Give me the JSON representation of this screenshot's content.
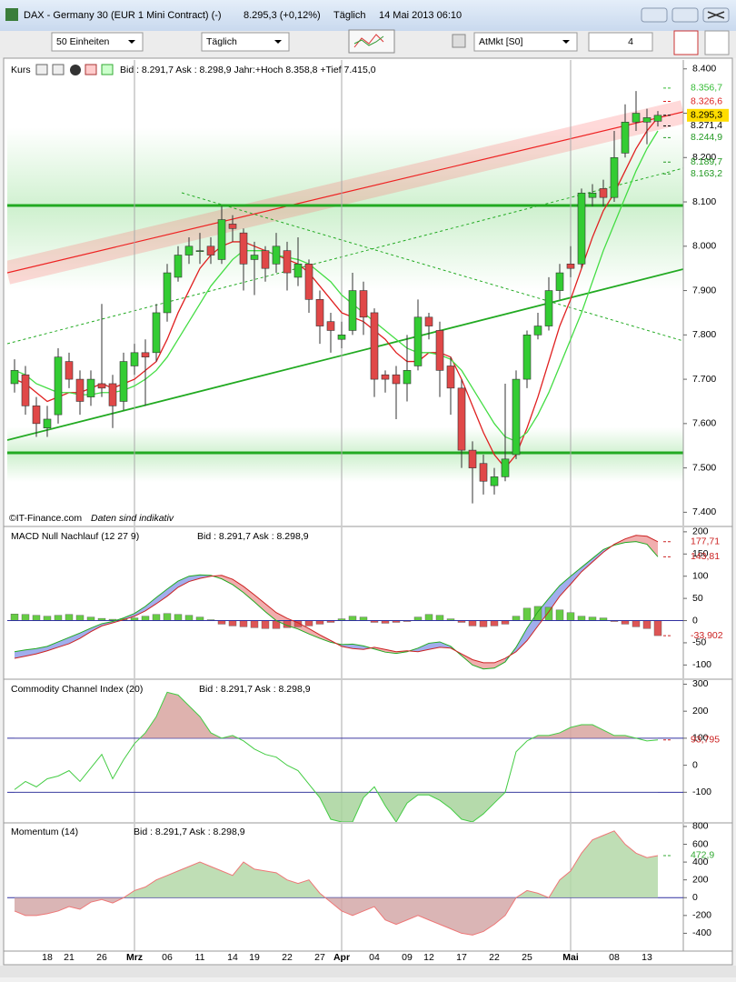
{
  "window": {
    "title": "DAX - Germany 30 (EUR 1 Mini Contract) (-)",
    "quote": "8.295,3 (+0,12%)",
    "period": "Täglich",
    "timestamp": "14 Mai 2013 06:10"
  },
  "toolbar": {
    "units": "50 Einheiten",
    "interval": "Täglich",
    "order": "AtMkt [S0]",
    "quantity": "4"
  },
  "chart_data": [
    {
      "type": "candlestick",
      "title": "Kurs",
      "quote": "Bid : 8.291,7  Ask : 8.298,9  Jahr:+Hoch 8.358,8 +Tief 7.415,0",
      "source": "©IT-Finance.com",
      "note": "Daten sind indikativ",
      "categories": [
        null,
        null,
        null,
        "18",
        null,
        "21",
        null,
        null,
        "26",
        null,
        null,
        "Mrz",
        null,
        null,
        "06",
        null,
        null,
        "11",
        null,
        null,
        "14",
        null,
        "19",
        null,
        null,
        "22",
        null,
        null,
        "27",
        null,
        "Apr",
        null,
        null,
        "04",
        null,
        null,
        "09",
        null,
        "12",
        null,
        null,
        "17",
        null,
        null,
        "22",
        null,
        null,
        "25",
        null,
        null,
        null,
        "Mai",
        null,
        null,
        null,
        "08",
        null,
        null,
        "13",
        null
      ],
      "open": [
        7690,
        7710,
        7640,
        7590,
        7620,
        7740,
        7700,
        7660,
        7690,
        7690,
        7650,
        7730,
        7760,
        7760,
        7850,
        7930,
        7980,
        7990,
        8000,
        7970,
        8050,
        8030,
        7970,
        7990,
        7960,
        7990,
        7930,
        7960,
        7880,
        7830,
        7790,
        7810,
        7900,
        7850,
        7710,
        7710,
        7690,
        7730,
        7840,
        7810,
        7730,
        7680,
        7540,
        7510,
        7460,
        7480,
        7530,
        7700,
        7800,
        7820,
        7900,
        7960,
        7960,
        8110,
        8130,
        8110,
        8210,
        8280,
        8280,
        8282
      ],
      "high": [
        7745,
        7730,
        7660,
        7640,
        7770,
        7760,
        7720,
        7720,
        7870,
        7710,
        7760,
        7780,
        7790,
        7870,
        7960,
        8000,
        8020,
        8030,
        8020,
        8090,
        8070,
        8040,
        8010,
        8000,
        8030,
        8010,
        8020,
        7970,
        7900,
        7850,
        7830,
        7940,
        7920,
        7860,
        7720,
        7730,
        7800,
        7880,
        7850,
        7830,
        7750,
        7700,
        7560,
        7530,
        7500,
        7690,
        7720,
        7810,
        7850,
        7930,
        7960,
        8000,
        8130,
        8140,
        8150,
        8260,
        8320,
        8350,
        8310,
        8305
      ],
      "low": [
        7670,
        7620,
        7570,
        7570,
        7600,
        7680,
        7620,
        7640,
        7660,
        7590,
        7630,
        7710,
        7640,
        7740,
        7830,
        7920,
        7960,
        7960,
        7960,
        7960,
        8010,
        7900,
        7890,
        7920,
        7940,
        7900,
        7910,
        7850,
        7780,
        7760,
        7770,
        7800,
        7800,
        7660,
        7670,
        7610,
        7650,
        7720,
        7790,
        7660,
        7620,
        7500,
        7420,
        7440,
        7440,
        7470,
        7520,
        7680,
        7790,
        7810,
        7880,
        7930,
        7950,
        8090,
        8090,
        8100,
        8200,
        8260,
        8230,
        8270
      ],
      "close": [
        7720,
        7640,
        7600,
        7610,
        7750,
        7700,
        7650,
        7700,
        7680,
        7640,
        7740,
        7760,
        7750,
        7850,
        7940,
        7980,
        8000,
        7990,
        7980,
        8060,
        8040,
        7960,
        7980,
        7950,
        8000,
        7940,
        7960,
        7880,
        7820,
        7810,
        7800,
        7900,
        7840,
        7700,
        7700,
        7690,
        7720,
        7840,
        7820,
        7720,
        7680,
        7540,
        7500,
        7470,
        7480,
        7520,
        7700,
        7800,
        7820,
        7900,
        7940,
        7950,
        8120,
        8120,
        8110,
        8200,
        8280,
        8300,
        8290,
        8295.3
      ],
      "up_color": "#33cc33",
      "down_color": "#e04848",
      "series": [
        {
          "name": null,
          "color": "#e02020",
          "values": [
            7700,
            7690,
            7670,
            7650,
            7660,
            7670,
            7670,
            7680,
            7690,
            7680,
            7690,
            7700,
            7720,
            7740,
            7790,
            7850,
            7900,
            7950,
            7980,
            8000,
            8010,
            8010,
            8000,
            7990,
            7980,
            7970,
            7960,
            7940,
            7910,
            7880,
            7850,
            7840,
            7830,
            7810,
            7790,
            7760,
            7740,
            7740,
            7760,
            7760,
            7750,
            7700,
            7640,
            7580,
            7530,
            7500,
            7530,
            7590,
            7660,
            7740,
            7820,
            7880,
            7950,
            8020,
            8080,
            8120,
            8170,
            8220,
            8260,
            8290
          ]
        },
        {
          "name": null,
          "color": "#44dd44",
          "values": [
            7720,
            7710,
            7690,
            7680,
            7670,
            7670,
            7665,
            7665,
            7670,
            7670,
            7675,
            7685,
            7700,
            7720,
            7750,
            7790,
            7830,
            7870,
            7910,
            7940,
            7970,
            7990,
            7990,
            7990,
            7980,
            7975,
            7970,
            7960,
            7940,
            7920,
            7890,
            7870,
            7850,
            7830,
            7810,
            7790,
            7770,
            7760,
            7760,
            7755,
            7745,
            7720,
            7680,
            7640,
            7600,
            7570,
            7560,
            7580,
            7620,
            7670,
            7730,
            7790,
            7850,
            7920,
            7990,
            8050,
            8110,
            8170,
            8220,
            8260
          ]
        }
      ],
      "ylim": [
        7370,
        8420
      ],
      "yticks": [
        {
          "value": 8400,
          "label": "8.400"
        },
        {
          "value": 8300,
          "label": "8.300"
        },
        {
          "value": 8200,
          "label": "8.200"
        },
        {
          "value": 8100,
          "label": "8.100"
        },
        {
          "value": 8000,
          "label": "8.000"
        },
        {
          "value": 7900,
          "label": "7.900"
        },
        {
          "value": 7800,
          "label": "7.800"
        },
        {
          "value": 7700,
          "label": "7.700"
        },
        {
          "value": 7600,
          "label": "7.600"
        },
        {
          "value": 7500,
          "label": "7.500"
        },
        {
          "value": 7400,
          "label": "7.400"
        }
      ],
      "markers": [
        {
          "value": 8356.7,
          "label": "8.356,7",
          "color": "#33bb33"
        },
        {
          "value": 8326.6,
          "label": "8.326,6",
          "color": "#dd2222"
        },
        {
          "value": 8295.3,
          "label": "8.295,3",
          "color": "#000000",
          "background": "#ffdd00"
        },
        {
          "value": 8271.4,
          "label": "8.271,4",
          "color": "#000000"
        },
        {
          "value": 8244.9,
          "label": "8.244,9",
          "color": "#229922"
        },
        {
          "value": 8189.7,
          "label": "8.189,7",
          "color": "#229922"
        },
        {
          "value": 8163.2,
          "label": "8.163,2",
          "color": "#229922"
        }
      ]
    },
    {
      "type": "macd",
      "title": "MACD Null Nachlauf (12 27 9)",
      "quote": "Bid : 8.291,7  Ask : 8.298,9",
      "values": [
        15,
        14,
        12,
        10,
        12,
        14,
        12,
        8,
        5,
        3,
        4,
        6,
        10,
        14,
        16,
        14,
        12,
        8,
        2,
        -8,
        -12,
        -14,
        -16,
        -18,
        -18,
        -16,
        -14,
        -12,
        -8,
        -4,
        4,
        10,
        8,
        -4,
        -6,
        -4,
        -2,
        8,
        14,
        12,
        4,
        -4,
        -12,
        -14,
        -12,
        -8,
        10,
        28,
        32,
        30,
        24,
        18,
        10,
        8,
        6,
        -2,
        -8,
        -14,
        -18,
        -33.902
      ],
      "up_color": "#66cc44",
      "down_color": "#dd5555",
      "series": [
        {
          "name": null,
          "color": "#22aa22",
          "values": [
            -70,
            -66,
            -63,
            -58,
            -48,
            -38,
            -28,
            -17,
            -7,
            -2,
            6,
            16,
            32,
            52,
            71,
            89,
            100,
            103,
            102,
            94,
            81,
            63,
            42,
            20,
            0,
            -11,
            -19,
            -30,
            -40,
            -49,
            -54,
            -53,
            -57,
            -64,
            -71,
            -74,
            -70,
            -62,
            -51,
            -48,
            -58,
            -79,
            -100,
            -109,
            -107,
            -93,
            -60,
            -17,
            20,
            50,
            79,
            100,
            120,
            140,
            160,
            170,
            176,
            178,
            172,
            143.81
          ]
        },
        {
          "name": null,
          "color": "#cc2222",
          "values": [
            -85,
            -80,
            -75,
            -68,
            -60,
            -52,
            -40,
            -25,
            -12,
            -5,
            2,
            10,
            22,
            38,
            55,
            75,
            88,
            95,
            100,
            102,
            93,
            77,
            58,
            38,
            18,
            5,
            -5,
            -18,
            -32,
            -45,
            -58,
            -63,
            -65,
            -60,
            -65,
            -70,
            -68,
            -70,
            -65,
            -60,
            -62,
            -75,
            -88,
            -95,
            -95,
            -85,
            -70,
            -45,
            -12,
            20,
            55,
            82,
            110,
            132,
            154,
            172,
            184,
            192,
            190,
            177.71
          ]
        }
      ],
      "fill_above": "#8a9ae8",
      "fill_below": "#ee9a9a",
      "ylim": [
        -130,
        210
      ],
      "yticks": [
        200,
        150,
        100,
        50,
        0,
        -50,
        -100
      ],
      "markers": [
        {
          "value": 177.71,
          "label": "177,71",
          "color": "#cc2222"
        },
        {
          "value": 143.81,
          "label": "143,81",
          "color": "#cc2222"
        },
        {
          "value": -33.902,
          "label": "-33,902",
          "color": "#cc2222"
        }
      ]
    },
    {
      "type": "line",
      "title": "Commodity Channel Index (20)",
      "quote": "Bid : 8.291,7  Ask : 8.298,9",
      "series": [
        {
          "name": null,
          "color": "#44cc44",
          "values": [
            -90,
            -60,
            -80,
            -50,
            -40,
            -20,
            -60,
            -10,
            40,
            -50,
            20,
            80,
            120,
            180,
            270,
            260,
            220,
            180,
            120,
            100,
            110,
            90,
            60,
            40,
            30,
            0,
            -20,
            -70,
            -120,
            -200,
            -210,
            -210,
            -120,
            -80,
            -150,
            -210,
            -140,
            -110,
            -110,
            -130,
            -160,
            -200,
            -210,
            -180,
            -140,
            -100,
            50,
            90,
            110,
            110,
            120,
            140,
            150,
            150,
            130,
            110,
            110,
            100,
            90,
            93.795
          ]
        }
      ],
      "levels": [
        100,
        -100
      ],
      "level_color": "#3030a0",
      "fills": [
        {
          "level": 100,
          "side": "above",
          "color": "#d8a4a0"
        },
        {
          "level": -100,
          "side": "below",
          "color": "#a8d49c"
        }
      ],
      "ylim": [
        -210,
        315
      ],
      "yticks": [
        300,
        200,
        100,
        0,
        -100
      ],
      "markers": [
        {
          "value": 93.795,
          "label": "93,795",
          "color": "#cc2222"
        }
      ]
    },
    {
      "type": "line",
      "title": "Momentum (14)",
      "quote": "Bid : 8.291,7  Ask : 8.298,9",
      "series": [
        {
          "name": null,
          "color": "#ee7777",
          "values": [
            -150,
            -200,
            -200,
            -180,
            -150,
            -100,
            -130,
            -50,
            -20,
            -60,
            0,
            80,
            120,
            200,
            250,
            300,
            350,
            400,
            350,
            300,
            250,
            400,
            320,
            300,
            280,
            200,
            160,
            200,
            50,
            -50,
            -150,
            -200,
            -150,
            -100,
            -250,
            -300,
            -250,
            -200,
            -250,
            -300,
            -350,
            -400,
            -420,
            -380,
            -300,
            -200,
            0,
            80,
            50,
            0,
            200,
            300,
            500,
            650,
            700,
            750,
            600,
            500,
            450,
            472.9
          ]
        }
      ],
      "levels": [
        0
      ],
      "level_color": "#3030a0",
      "fills": [
        {
          "level": 0,
          "side": "above",
          "color": "#b4d8a8"
        },
        {
          "level": 0,
          "side": "below",
          "color": "#d4a8a8"
        }
      ],
      "ylim": [
        -600,
        830
      ],
      "yticks": [
        800,
        600,
        400,
        200,
        0,
        -200,
        -400
      ],
      "markers": [
        {
          "value": 472.9,
          "label": "472,9",
          "color": "#33aa33"
        }
      ]
    }
  ]
}
